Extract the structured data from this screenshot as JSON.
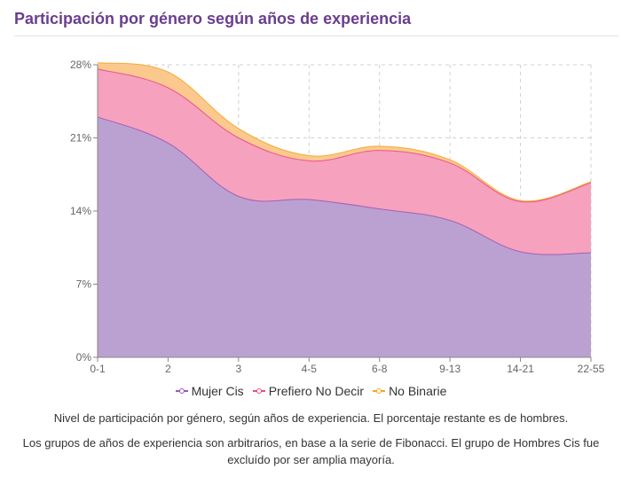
{
  "header": {
    "title": "Participación por género según años de experiencia"
  },
  "chart_data": {
    "type": "area",
    "stacked": true,
    "categories": [
      "0-1",
      "2",
      "3",
      "4-5",
      "6-8",
      "9-13",
      "14-21",
      "22-55"
    ],
    "ylim": [
      0,
      28
    ],
    "yticks": [
      0,
      7,
      14,
      21,
      28
    ],
    "ytick_labels": [
      "0%",
      "7%",
      "14%",
      "21%",
      "28%"
    ],
    "grid": true,
    "legend_position": "bottom",
    "series": [
      {
        "name": "Mujer Cis",
        "color": "#9b59b6",
        "fill": "#bba1d2",
        "values": [
          23.0,
          20.5,
          15.4,
          15.1,
          14.2,
          13.1,
          10.1,
          10.0
        ]
      },
      {
        "name": "Prefiero No Decir",
        "color": "#e84a8a",
        "fill": "#f6a1bd",
        "values": [
          4.6,
          5.3,
          5.6,
          3.7,
          5.6,
          5.5,
          4.8,
          6.7
        ]
      },
      {
        "name": "No Binarie",
        "color": "#f5a623",
        "fill": "#fbc98e",
        "values": [
          0.6,
          1.5,
          0.9,
          0.5,
          0.4,
          0.3,
          0.1,
          0.1
        ]
      }
    ]
  },
  "captions": {
    "line1": "Nivel de participación por género, según años de experiencia. El porcentaje restante es de hombres.",
    "line2": "Los grupos de años de experiencia son arbitrarios, en base a la serie de Fibonacci. El grupo de Hombres Cis fue excluído por ser amplia mayoría."
  }
}
